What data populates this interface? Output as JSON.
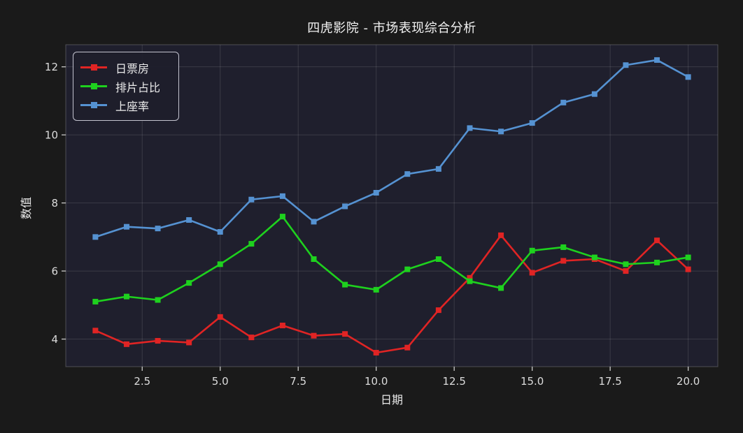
{
  "colors": {
    "figure_bg": "#1a1a1a",
    "plot_bg": "#1f1f2d",
    "grid": "rgba(255,255,255,0.12)",
    "spine": "rgba(255,255,255,0.22)",
    "tick": "#c9c9c9",
    "tick_label": "#dcdcdc",
    "title_text": "#f2f2f2",
    "series_red": "#e02424",
    "series_green": "#1ed11e",
    "series_blue": "#5592d2"
  },
  "chart_data": {
    "type": "line",
    "title": "四虎影院 - 市场表现综合分析",
    "xlabel": "日期",
    "ylabel": "数值",
    "x": [
      1,
      2,
      3,
      4,
      5,
      6,
      7,
      8,
      9,
      10,
      11,
      12,
      13,
      14,
      15,
      16,
      17,
      18,
      19,
      20
    ],
    "series": [
      {
        "name": "日票房",
        "color": "#e02424",
        "values": [
          4.25,
          3.85,
          3.95,
          3.9,
          4.65,
          4.05,
          4.4,
          4.1,
          4.15,
          3.6,
          3.75,
          4.85,
          5.8,
          7.05,
          5.95,
          6.3,
          6.35,
          6.0,
          6.9,
          6.05
        ]
      },
      {
        "name": "排片占比",
        "color": "#1ed11e",
        "values": [
          5.1,
          5.25,
          5.15,
          5.65,
          6.2,
          6.8,
          7.6,
          6.35,
          5.6,
          5.45,
          6.05,
          6.35,
          5.7,
          5.5,
          6.6,
          6.7,
          6.4,
          6.2,
          6.25,
          6.4
        ]
      },
      {
        "name": "上座率",
        "color": "#5592d2",
        "values": [
          7.0,
          7.3,
          7.25,
          7.5,
          7.15,
          8.1,
          8.2,
          7.45,
          7.9,
          8.3,
          8.85,
          9.0,
          10.2,
          10.1,
          10.35,
          10.95,
          11.2,
          12.05,
          12.2,
          11.7
        ]
      }
    ],
    "xlim": [
      0.05,
      20.95
    ],
    "ylim": [
      3.19,
      12.65
    ],
    "xtick_values": [
      2.5,
      5.0,
      7.5,
      10.0,
      12.5,
      15.0,
      17.5,
      20.0
    ],
    "xtick_labels": [
      "2.5",
      "5.0",
      "7.5",
      "10.0",
      "12.5",
      "15.0",
      "17.5",
      "20.0"
    ],
    "ytick_values": [
      4,
      6,
      8,
      10,
      12
    ],
    "ytick_labels": [
      "4",
      "6",
      "8",
      "10",
      "12"
    ],
    "grid": true,
    "legend_position": "upper-left",
    "marker": "square",
    "line_width": 2.6
  }
}
